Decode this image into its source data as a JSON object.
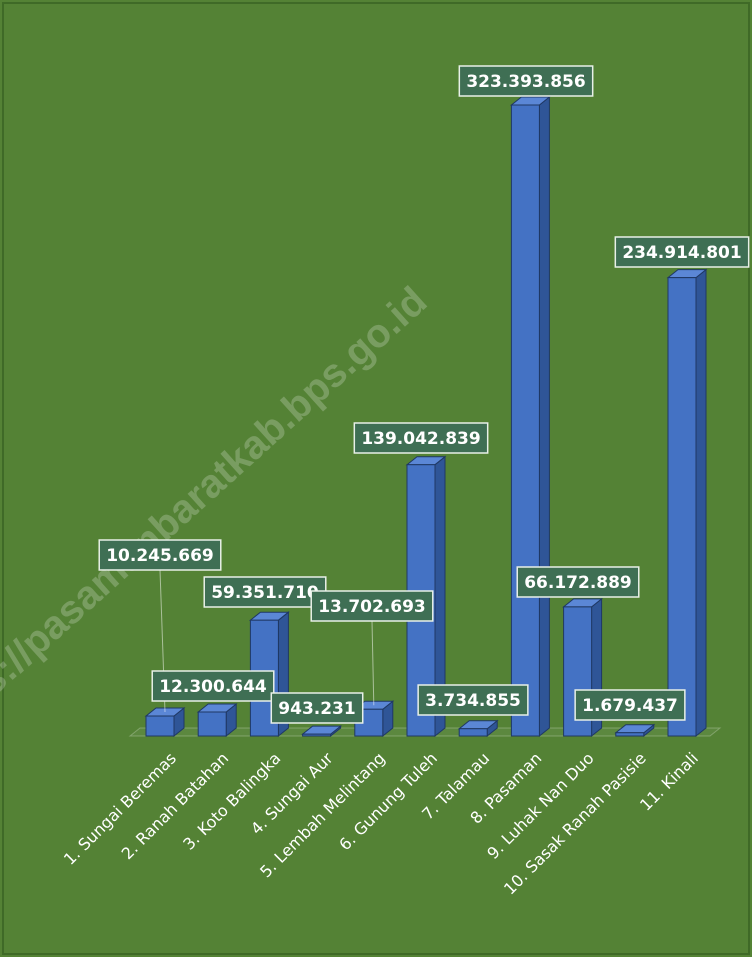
{
  "chart_data": {
    "type": "bar3d",
    "categories": [
      "1. Sungai Beremas",
      "2. Ranah Batahan",
      "3. Koto Balingka",
      "4. Sungai Aur",
      "5. Lembah Melintang",
      "6. Gunung Tuleh",
      "7. Talamau",
      "8. Pasaman",
      "9. Luhak Nan Duo",
      "10. Sasak Ranah Pasisie",
      "11. Kinali"
    ],
    "values": [
      10245669,
      12300644,
      59351710,
      943231,
      13702693,
      139042839,
      3734855,
      323393856,
      66172889,
      1679437,
      234914801
    ],
    "value_labels": [
      "10.245.669",
      "12.300.644",
      "59.351.710",
      "943.231",
      "13.702.693",
      "139.042.839",
      "3.734.855",
      "323.393.856",
      "66.172.889",
      "1.679.437",
      "234.914.801"
    ],
    "color": "#4472c4",
    "watermark": "https://pasamanbaratkab.bps.go.id"
  }
}
